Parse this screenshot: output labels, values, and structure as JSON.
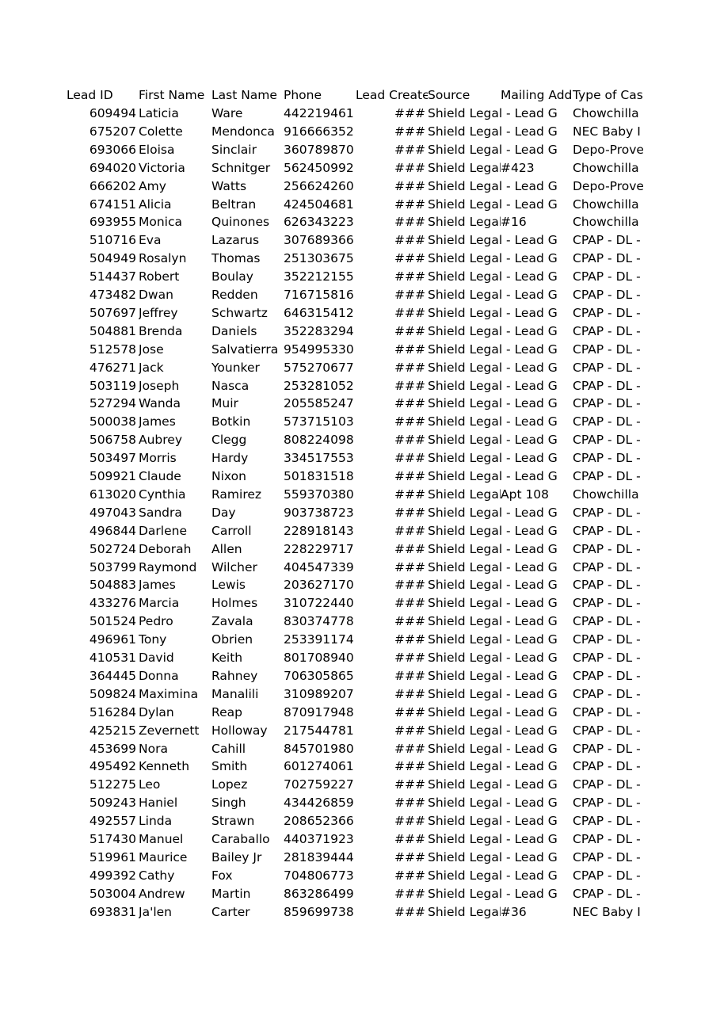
{
  "headers": [
    "Lead ID",
    "First Name",
    "Last Name",
    "Phone",
    "Lead Created",
    "Source",
    "Mailing Address",
    "Type of Case"
  ],
  "rows": [
    [
      "609494",
      "Laticia",
      "Ware",
      "442219461",
      "###",
      "Shield Legal - Lead G",
      "",
      "Chowchilla"
    ],
    [
      "675207",
      "Colette",
      "Mendonca",
      "916666352",
      "###",
      "Shield Legal - Lead G",
      "",
      "NEC Baby I"
    ],
    [
      "693066",
      "Eloisa",
      "Sinclair",
      "360789870",
      "###",
      "Shield Legal - Lead G",
      "",
      "Depo-Prove"
    ],
    [
      "694020",
      "Victoria",
      "Schnitger",
      "562450992",
      "###",
      "Shield Legal - Lead G",
      "#423",
      "Chowchilla"
    ],
    [
      "666202",
      "Amy",
      "Watts",
      "256624260",
      "###",
      "Shield Legal - Lead G",
      "",
      "Depo-Prove"
    ],
    [
      "674151",
      "Alicia",
      "Beltran",
      "424504681",
      "###",
      "Shield Legal - Lead G",
      "",
      "Chowchilla"
    ],
    [
      "693955",
      "Monica",
      "Quinones",
      "626343223",
      "###",
      "Shield Legal - Lead G",
      "#16",
      "Chowchilla"
    ],
    [
      "510716",
      "Eva",
      "Lazarus",
      "307689366",
      "###",
      "Shield Legal - Lead G",
      "",
      "CPAP - DL -"
    ],
    [
      "504949",
      "Rosalyn",
      "Thomas",
      "251303675",
      "###",
      "Shield Legal - Lead G",
      "",
      "CPAP - DL -"
    ],
    [
      "514437",
      "Robert",
      "Boulay",
      "352212155",
      "###",
      "Shield Legal - Lead G",
      "",
      "CPAP - DL -"
    ],
    [
      "473482",
      "Dwan",
      "Redden",
      "716715816",
      "###",
      "Shield Legal - Lead G",
      "",
      "CPAP - DL -"
    ],
    [
      "507697",
      "Jeffrey",
      "Schwartz",
      "646315412",
      "###",
      "Shield Legal - Lead G",
      "",
      "CPAP - DL -"
    ],
    [
      "504881",
      "Brenda",
      "Daniels",
      "352283294",
      "###",
      "Shield Legal - Lead G",
      "",
      "CPAP - DL -"
    ],
    [
      "512578",
      "Jose",
      "Salvatierra",
      "954995330",
      "###",
      "Shield Legal - Lead G",
      "",
      "CPAP - DL -"
    ],
    [
      "476271",
      "Jack",
      "Younker",
      "575270677",
      "###",
      "Shield Legal - Lead G",
      "",
      "CPAP - DL -"
    ],
    [
      "503119",
      "Joseph",
      "Nasca",
      "253281052",
      "###",
      "Shield Legal - Lead G",
      "",
      "CPAP - DL -"
    ],
    [
      "527294",
      "Wanda",
      "Muir",
      "205585247",
      "###",
      "Shield Legal - Lead G",
      "",
      "CPAP - DL -"
    ],
    [
      "500038",
      "James",
      "Botkin",
      "573715103",
      "###",
      "Shield Legal - Lead G",
      "",
      "CPAP - DL -"
    ],
    [
      "506758",
      "Aubrey",
      "Clegg",
      "808224098",
      "###",
      "Shield Legal - Lead G",
      "",
      "CPAP - DL -"
    ],
    [
      "503497",
      "Morris",
      "Hardy",
      "334517553",
      "###",
      "Shield Legal - Lead G",
      "",
      "CPAP - DL -"
    ],
    [
      "509921",
      "Claude",
      "Nixon",
      "501831518",
      "###",
      "Shield Legal - Lead G",
      "",
      "CPAP - DL -"
    ],
    [
      "613020",
      "Cynthia",
      "Ramirez",
      "559370380",
      "###",
      "Shield Legal - Lead G",
      "Apt 108",
      "Chowchilla"
    ],
    [
      "497043",
      "Sandra",
      "Day",
      "903738723",
      "###",
      "Shield Legal - Lead G",
      "",
      "CPAP - DL -"
    ],
    [
      "496844",
      "Darlene",
      "Carroll",
      "228918143",
      "###",
      "Shield Legal - Lead G",
      "",
      "CPAP - DL -"
    ],
    [
      "502724",
      "Deborah",
      "Allen",
      "228229717",
      "###",
      "Shield Legal - Lead G",
      "",
      "CPAP - DL -"
    ],
    [
      "503799",
      "Raymond",
      "Wilcher",
      "404547339",
      "###",
      "Shield Legal - Lead G",
      "",
      "CPAP - DL -"
    ],
    [
      "504883",
      "James",
      "Lewis",
      "203627170",
      "###",
      "Shield Legal - Lead G",
      "",
      "CPAP - DL -"
    ],
    [
      "433276",
      "Marcia",
      "Holmes",
      "310722440",
      "###",
      "Shield Legal - Lead G",
      "",
      "CPAP - DL -"
    ],
    [
      "501524",
      "Pedro",
      "Zavala",
      "830374778",
      "###",
      "Shield Legal - Lead G",
      "",
      "CPAP - DL -"
    ],
    [
      "496961",
      "Tony",
      "Obrien",
      "253391174",
      "###",
      "Shield Legal - Lead G",
      "",
      "CPAP - DL -"
    ],
    [
      "410531",
      "David",
      "Keith",
      "801708940",
      "###",
      "Shield Legal - Lead G",
      "",
      "CPAP - DL -"
    ],
    [
      "364445",
      "Donna",
      "Rahney",
      "706305865",
      "###",
      "Shield Legal - Lead G",
      "",
      "CPAP - DL -"
    ],
    [
      "509824",
      "Maximina",
      "Manalili",
      "310989207",
      "###",
      "Shield Legal - Lead G",
      "",
      "CPAP - DL -"
    ],
    [
      "516284",
      "Dylan",
      "Reap",
      "870917948",
      "###",
      "Shield Legal - Lead G",
      "",
      "CPAP - DL -"
    ],
    [
      "425215",
      "Zevernett",
      "Holloway",
      "217544781",
      "###",
      "Shield Legal - Lead G",
      "",
      "CPAP - DL -"
    ],
    [
      "453699",
      "Nora",
      "Cahill",
      "845701980",
      "###",
      "Shield Legal - Lead G",
      "",
      "CPAP - DL -"
    ],
    [
      "495492",
      "Kenneth",
      "Smith",
      "601274061",
      "###",
      "Shield Legal - Lead G",
      "",
      "CPAP - DL -"
    ],
    [
      "512275",
      "Leo",
      "Lopez",
      "702759227",
      "###",
      "Shield Legal - Lead G",
      "",
      "CPAP - DL -"
    ],
    [
      "509243",
      "Haniel",
      "Singh",
      "434426859",
      "###",
      "Shield Legal - Lead G",
      "",
      "CPAP - DL -"
    ],
    [
      "492557",
      "Linda",
      "Strawn",
      "208652366",
      "###",
      "Shield Legal - Lead G",
      "",
      "CPAP - DL -"
    ],
    [
      "517430",
      "Manuel",
      "Caraballo",
      "440371923",
      "###",
      "Shield Legal - Lead G",
      "",
      "CPAP - DL -"
    ],
    [
      "519961",
      "Maurice",
      "Bailey Jr",
      "281839444",
      "###",
      "Shield Legal - Lead G",
      "",
      "CPAP - DL -"
    ],
    [
      "499392",
      "Cathy",
      "Fox",
      "704806773",
      "###",
      "Shield Legal - Lead G",
      "",
      "CPAP - DL -"
    ],
    [
      "503004",
      "Andrew",
      "Martin",
      "863286499",
      "###",
      "Shield Legal - Lead G",
      "",
      "CPAP - DL -"
    ],
    [
      "693831",
      "Ja'len",
      "Carter",
      "859699738",
      "###",
      "Shield Legal - Lead G",
      "#36",
      "NEC Baby I"
    ]
  ]
}
